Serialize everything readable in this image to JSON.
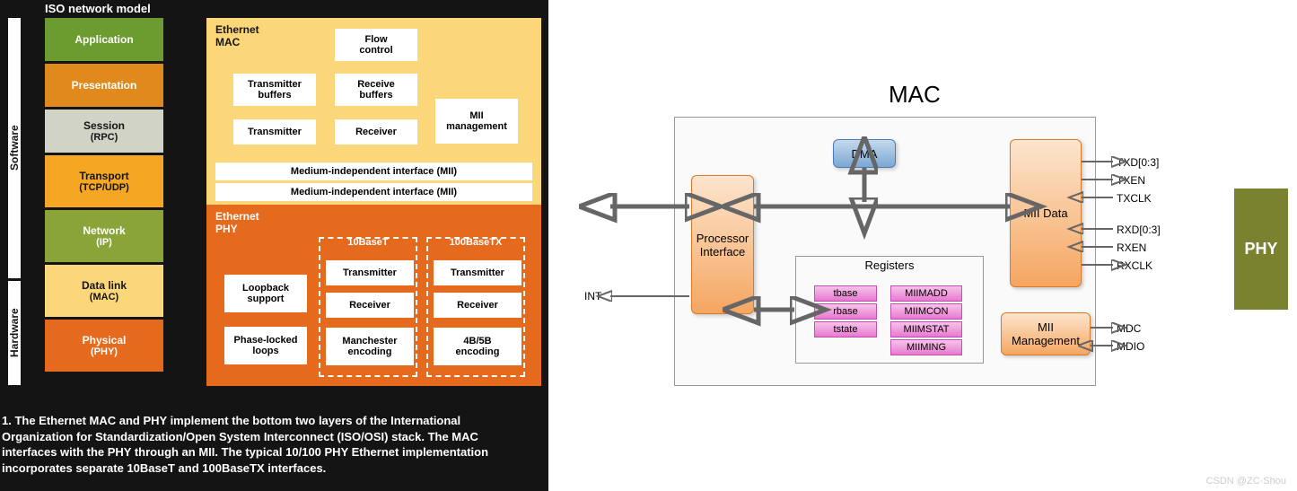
{
  "left": {
    "iso_title": "ISO network model",
    "software_label": "Software",
    "hardware_label": "Hardware",
    "layers": [
      {
        "name": "Application",
        "sub": "",
        "bg": "#6c9b2f",
        "h": 48,
        "fg": "#ffffff"
      },
      {
        "name": "Presentation",
        "sub": "",
        "bg": "#e08a1e",
        "h": 48,
        "fg": "#ffffff"
      },
      {
        "name": "Session",
        "sub": "(RPC)",
        "bg": "#d0d3c5",
        "h": 48,
        "fg": "#141414"
      },
      {
        "name": "Transport",
        "sub": "(TCP/UDP)",
        "bg": "#f5a623",
        "h": 58,
        "fg": "#141414"
      },
      {
        "name": "Network",
        "sub": "(IP)",
        "bg": "#8aa43a",
        "h": 58,
        "fg": "#ffffff"
      },
      {
        "name": "Data link",
        "sub": "(MAC)",
        "bg": "#fcd77a",
        "h": 58,
        "fg": "#141414"
      },
      {
        "name": "Physical",
        "sub": "(PHY)",
        "bg": "#e56a1e",
        "h": 58,
        "fg": "#ffffff"
      }
    ],
    "mac": {
      "title": "Ethernet\nMAC",
      "flow_control": "Flow\ncontrol",
      "tx_buffers": "Transmitter\nbuffers",
      "rx_buffers": "Receive\nbuffers",
      "transmitter": "Transmitter",
      "receiver": "Receiver",
      "mii_mgmt": "MII\nmanagement",
      "mii1": "Medium-independent interface (MII)",
      "mii2": "Medium-independent interface (MII)"
    },
    "phy": {
      "title": "Ethernet\nPHY",
      "loopback": "Loopback\nsupport",
      "pll": "Phase-locked\nloops",
      "g10": {
        "title": "10BaseT",
        "tx": "Transmitter",
        "rx": "Receiver",
        "enc": "Manchester\nencoding"
      },
      "g100": {
        "title": "100BaseTX",
        "tx": "Transmitter",
        "rx": "Receiver",
        "enc": "4B/5B\nencoding"
      }
    },
    "caption": "1. The Ethernet MAC and PHY implement the bottom two layers of the International Organization for Standardization/Open System Interconnect (ISO/OSI) stack. The MAC interfaces with the PHY through an MII. The typical 10/100 PHY Ethernet implementation incorporates separate 10BaseT and 100BaseTX interfaces."
  },
  "right": {
    "mac_title": "MAC",
    "proc_if": "Processor\nInterface",
    "dma": "DMA",
    "mii_data": "MII Data",
    "mii_mgmt": "MII\nManagement",
    "registers_title": "Registers",
    "regs_left": [
      "tbase",
      "rbase",
      "tstate"
    ],
    "regs_right": [
      "MIIMADD",
      "MIIMCON",
      "MIIMSTAT",
      "MIIMING"
    ],
    "int_label": "INT",
    "phy_label": "PHY",
    "signals": [
      "TXD[0:3]",
      "TXEN",
      "TXCLK",
      "RXD[0:3]",
      "RXEN",
      "RXCLK",
      "MDC",
      "MDIO"
    ],
    "watermark": "CSDN @ZC·Shou"
  },
  "colors": {
    "dark_bg": "#141414",
    "mac_bg": "#fcd77a",
    "phy_bg": "#e56a1e",
    "orange_grad_top": "#fce5ce",
    "orange_grad_bot": "#f5a661",
    "blue_grad_top": "#c5d9ed",
    "blue_grad_bot": "#7ba7d4",
    "pink_grad_top": "#f5c5e8",
    "pink_grad_bot": "#e878d0",
    "phy_green": "#7a8230"
  }
}
